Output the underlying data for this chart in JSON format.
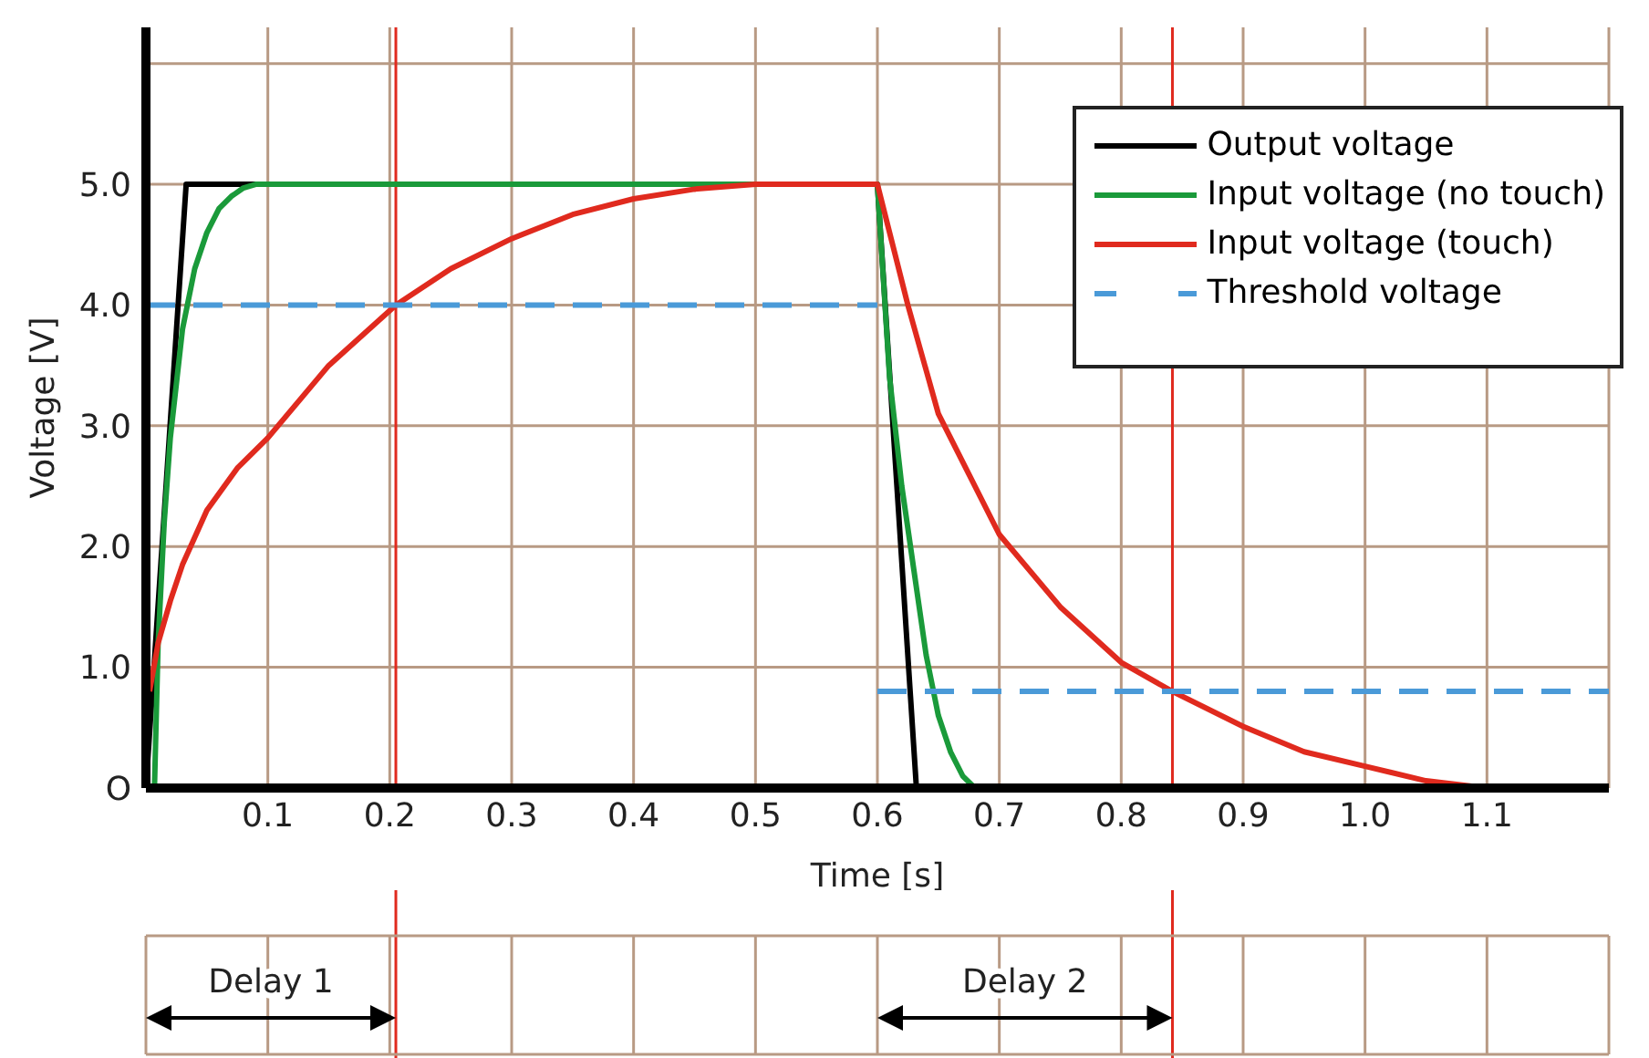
{
  "chart_data": {
    "type": "line",
    "xlabel": "Time [s]",
    "ylabel": "Voltage [V]",
    "xlim": [
      0,
      1.2
    ],
    "ylim": [
      0,
      6.3
    ],
    "xticks": [
      {
        "value": 0,
        "label": null
      },
      0.1,
      0.2,
      0.3,
      0.4,
      0.5,
      0.6,
      0.7,
      0.8,
      0.9,
      {
        "value": 1,
        "label": "1.0"
      },
      1.1,
      {
        "value": 1.2,
        "label": null
      }
    ],
    "yticks": [
      {
        "value": 0,
        "label": "O"
      },
      {
        "value": 1,
        "label": "1.0"
      },
      {
        "value": 2,
        "label": "2.0"
      },
      {
        "value": 3,
        "label": "3.0"
      },
      {
        "value": 4,
        "label": "4.0"
      },
      {
        "value": 5,
        "label": "5.0"
      },
      {
        "value": 6,
        "label": null
      }
    ],
    "grid": true,
    "legend": "top right",
    "marker": "none",
    "series": [
      {
        "name": "Output voltage",
        "color": "#000000",
        "x": [
          0,
          0.033,
          0.6,
          0.632
        ],
        "values": [
          0,
          5,
          5,
          0
        ]
      },
      {
        "name": "Input voltage (no touch)",
        "color": "#1a9a3a",
        "x": [
          0.007,
          0.01,
          0.015,
          0.02,
          0.03,
          0.04,
          0.05,
          0.06,
          0.07,
          0.08,
          0.09,
          0.6,
          0.605,
          0.61,
          0.62,
          0.63,
          0.64,
          0.65,
          0.66,
          0.67,
          0.68
        ],
        "values": [
          0,
          1.2,
          2.2,
          2.9,
          3.8,
          4.3,
          4.6,
          4.8,
          4.9,
          4.97,
          5,
          5,
          4.2,
          3.4,
          2.5,
          1.8,
          1.1,
          0.6,
          0.3,
          0.1,
          0
        ]
      },
      {
        "name": "Input voltage (touch)",
        "color": "#e02a1e",
        "x": [
          0.003,
          0.01,
          0.02,
          0.03,
          0.05,
          0.075,
          0.1,
          0.15,
          0.205,
          0.25,
          0.3,
          0.35,
          0.4,
          0.45,
          0.5,
          0.6,
          0.61,
          0.625,
          0.65,
          0.7,
          0.75,
          0.8,
          0.842,
          0.9,
          0.95,
          1.0,
          1.05,
          1.1
        ],
        "values": [
          0.8,
          1.2,
          1.55,
          1.85,
          2.3,
          2.65,
          2.9,
          3.5,
          4.0,
          4.3,
          4.55,
          4.75,
          4.88,
          4.96,
          5,
          5,
          4.6,
          4.0,
          3.1,
          2.1,
          1.5,
          1.04,
          0.8,
          0.51,
          0.3,
          0.18,
          0.06,
          0
        ]
      },
      {
        "name": "Threshold voltage",
        "color": "#4a9ad8",
        "line_style": "dashed",
        "x": [
          0,
          0.6
        ],
        "values": [
          4,
          4
        ]
      },
      {
        "color": "#4a9ad8",
        "line_style": "dashed",
        "x": [
          0.6,
          1.2
        ],
        "values": [
          0.8,
          0.8
        ]
      }
    ],
    "ref_lines": [
      {
        "axis": "x",
        "value": 0.205,
        "color": "#e02a1e"
      },
      {
        "axis": "x",
        "value": 0.842,
        "color": "#e02a1e"
      }
    ],
    "annotations": [
      "Delay 1",
      "Delay 2"
    ]
  }
}
